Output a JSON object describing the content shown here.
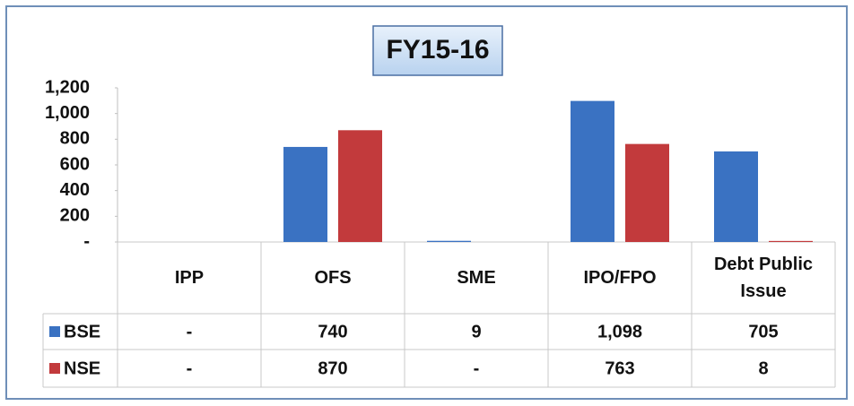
{
  "chart_data": {
    "type": "bar",
    "title": "FY15-16",
    "categories": [
      "IPP",
      "OFS",
      "SME",
      "IPO/FPO",
      "Debt Public Issue"
    ],
    "series": [
      {
        "name": "BSE",
        "color": "#3a72c2",
        "values": [
          0,
          740,
          9,
          1098,
          705
        ],
        "value_labels": [
          "-",
          "740",
          "9",
          "1,098",
          "705"
        ]
      },
      {
        "name": "NSE",
        "color": "#c23a3c",
        "values": [
          0,
          870,
          0,
          763,
          8
        ],
        "value_labels": [
          "-",
          "870",
          "-",
          "763",
          "8"
        ]
      }
    ],
    "ylim": [
      0,
      1200
    ],
    "yticks": [
      {
        "value": 0,
        "label": "-"
      },
      200,
      400,
      600,
      800,
      {
        "value": 1000,
        "label": "1,000"
      },
      {
        "value": 1200,
        "label": "1,200"
      }
    ]
  }
}
